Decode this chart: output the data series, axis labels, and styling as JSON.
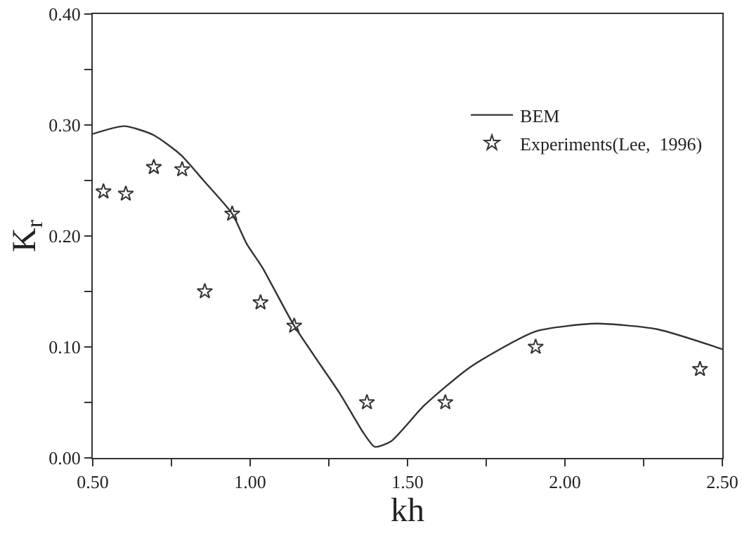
{
  "chart_data": {
    "type": "line",
    "xlabel": "kh",
    "ylabel": "K$_{r}$",
    "xlim": [
      0.5,
      2.5
    ],
    "ylim": [
      0,
      0.4
    ],
    "xticks": [
      {
        "value": 0.5,
        "label": "0.50"
      },
      {
        "value": 0.75,
        "label": null
      },
      {
        "value": 1,
        "label": "1.00"
      },
      {
        "value": 1.25,
        "label": null
      },
      {
        "value": 1.5,
        "label": "1.50"
      },
      {
        "value": 1.75,
        "label": null
      },
      {
        "value": 2,
        "label": "2.00"
      },
      {
        "value": 2.25,
        "label": null
      },
      {
        "value": 2.5,
        "label": "2.50"
      }
    ],
    "yticks": [
      {
        "value": 0,
        "label": "0.00"
      },
      {
        "value": 0.05,
        "label": null
      },
      {
        "value": 0.1,
        "label": "0.10"
      },
      {
        "value": 0.15,
        "label": null
      },
      {
        "value": 0.2,
        "label": "0.20"
      },
      {
        "value": 0.25,
        "label": null
      },
      {
        "value": 0.3,
        "label": "0.30"
      },
      {
        "value": 0.35,
        "label": null
      },
      {
        "value": 0.4,
        "label": "0.40"
      }
    ],
    "grid": false,
    "legend": "top right",
    "series": [
      {
        "name": "BEM",
        "color": "#333333",
        "line_style": "solid",
        "marker": "none",
        "x": [
          0.5,
          0.6,
          0.693,
          0.78,
          0.855,
          0.943,
          0.989,
          1.04,
          1.14,
          1.285,
          1.359,
          1.396,
          1.448,
          1.552,
          1.7,
          1.907,
          2.1,
          2.293,
          2.5
        ],
        "values": [
          0.292,
          0.299,
          0.291,
          0.273,
          0.249,
          0.22,
          0.193,
          0.171,
          0.119,
          0.058,
          0.023,
          0.01,
          0.015,
          0.047,
          0.082,
          0.114,
          0.121,
          0.116,
          0.098
        ]
      },
      {
        "name": "Experiments(Lee,  1996)",
        "type": "scatter",
        "color": "#333333",
        "marker": "star",
        "x": [
          0.534,
          0.605,
          0.694,
          0.784,
          0.856,
          0.943,
          1.033,
          1.14,
          1.371,
          1.62,
          1.907,
          2.429
        ],
        "values": [
          0.24,
          0.238,
          0.262,
          0.26,
          0.15,
          0.22,
          0.14,
          0.119,
          0.05,
          0.05,
          0.1,
          0.08
        ]
      }
    ]
  }
}
